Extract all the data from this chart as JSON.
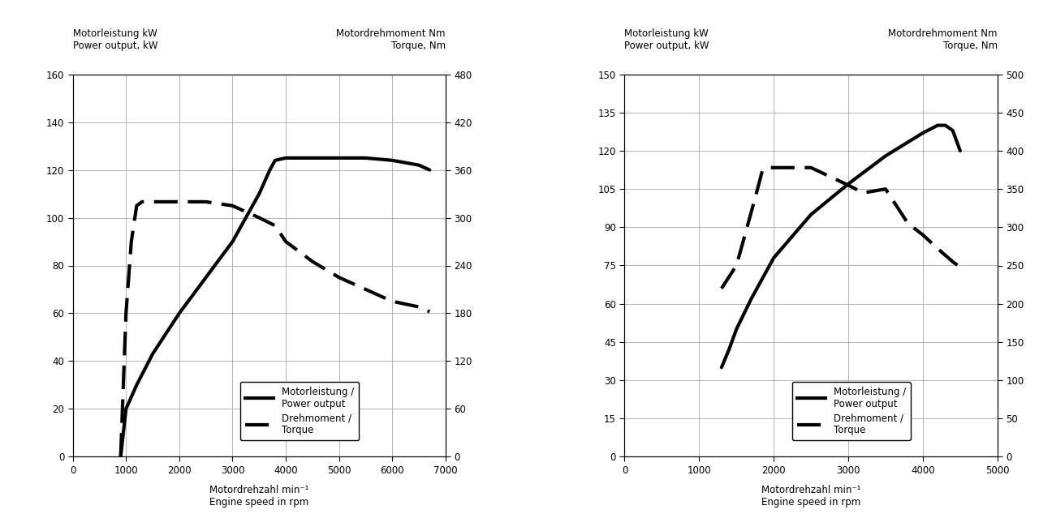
{
  "chart1": {
    "title_left": "Motorleistung kW\nPower output, kW",
    "title_right": "Motordrehmoment Nm\nTorque, Nm",
    "xlabel": "Motordrehzahl min⁻¹\nEngine speed in rpm",
    "ylim_left": [
      0,
      160
    ],
    "ylim_right": [
      0,
      480
    ],
    "xlim": [
      0,
      7000
    ],
    "yticks_left": [
      0,
      20,
      40,
      60,
      80,
      100,
      120,
      140,
      160
    ],
    "yticks_right": [
      0,
      60,
      120,
      180,
      240,
      300,
      360,
      420,
      480
    ],
    "xticks": [
      0,
      1000,
      2000,
      3000,
      4000,
      5000,
      6000,
      7000
    ],
    "power_x": [
      900,
      1000,
      1200,
      1500,
      2000,
      2500,
      3000,
      3500,
      3700,
      3800,
      4000,
      4500,
      5000,
      5500,
      6000,
      6500,
      6700
    ],
    "power_y": [
      0,
      20,
      30,
      43,
      60,
      75,
      90,
      110,
      120,
      124,
      125,
      125,
      125,
      125,
      124,
      122,
      120
    ],
    "torque_x": [
      900,
      1000,
      1100,
      1200,
      1300,
      1400,
      1500,
      2000,
      2500,
      3000,
      3500,
      3800,
      4000,
      4500,
      5000,
      5500,
      6000,
      6500,
      6700
    ],
    "torque_y": [
      0,
      180,
      270,
      315,
      320,
      320,
      320,
      320,
      320,
      315,
      300,
      290,
      270,
      245,
      225,
      210,
      195,
      188,
      182
    ],
    "legend_power": "Motorleistung /\nPower output",
    "legend_torque": "Drehmoment /\nTorque"
  },
  "chart2": {
    "title_left": "Motorleistung kW\nPower output, kW",
    "title_right": "Motordrehmoment Nm\nTorque, Nm",
    "xlabel": "Motordrehzahl min⁻¹\nEngine speed in rpm",
    "ylim_left": [
      0,
      150
    ],
    "ylim_right": [
      0,
      500
    ],
    "xlim": [
      0,
      5000
    ],
    "yticks_left": [
      0,
      15,
      30,
      45,
      60,
      75,
      90,
      105,
      120,
      135,
      150
    ],
    "yticks_right": [
      0,
      50,
      100,
      150,
      200,
      250,
      300,
      350,
      400,
      450,
      500
    ],
    "xticks": [
      0,
      1000,
      2000,
      3000,
      4000,
      5000
    ],
    "power_x": [
      1300,
      1400,
      1500,
      1700,
      2000,
      2500,
      3000,
      3500,
      4000,
      4200,
      4300,
      4400,
      4500
    ],
    "power_y": [
      35,
      42,
      50,
      62,
      78,
      95,
      107,
      118,
      127,
      130,
      130,
      128,
      120
    ],
    "torque_x": [
      1300,
      1500,
      1600,
      1750,
      1850,
      1950,
      2000,
      2100,
      2500,
      3000,
      3200,
      3500,
      3800,
      4000,
      4200,
      4400,
      4500
    ],
    "torque_y": [
      220,
      250,
      285,
      338,
      375,
      378,
      378,
      378,
      378,
      355,
      345,
      350,
      305,
      290,
      272,
      255,
      248
    ],
    "legend_power": "Motorleistung /\nPower output",
    "legend_torque": "Drehmoment /\nTorque"
  },
  "background_color": "#ffffff",
  "line_color": "#000000",
  "grid_color": "#aaaaaa",
  "fontsize_title": 8.5,
  "fontsize_tick": 8.5,
  "fontsize_legend": 8.5,
  "fontsize_xlabel": 8.5
}
